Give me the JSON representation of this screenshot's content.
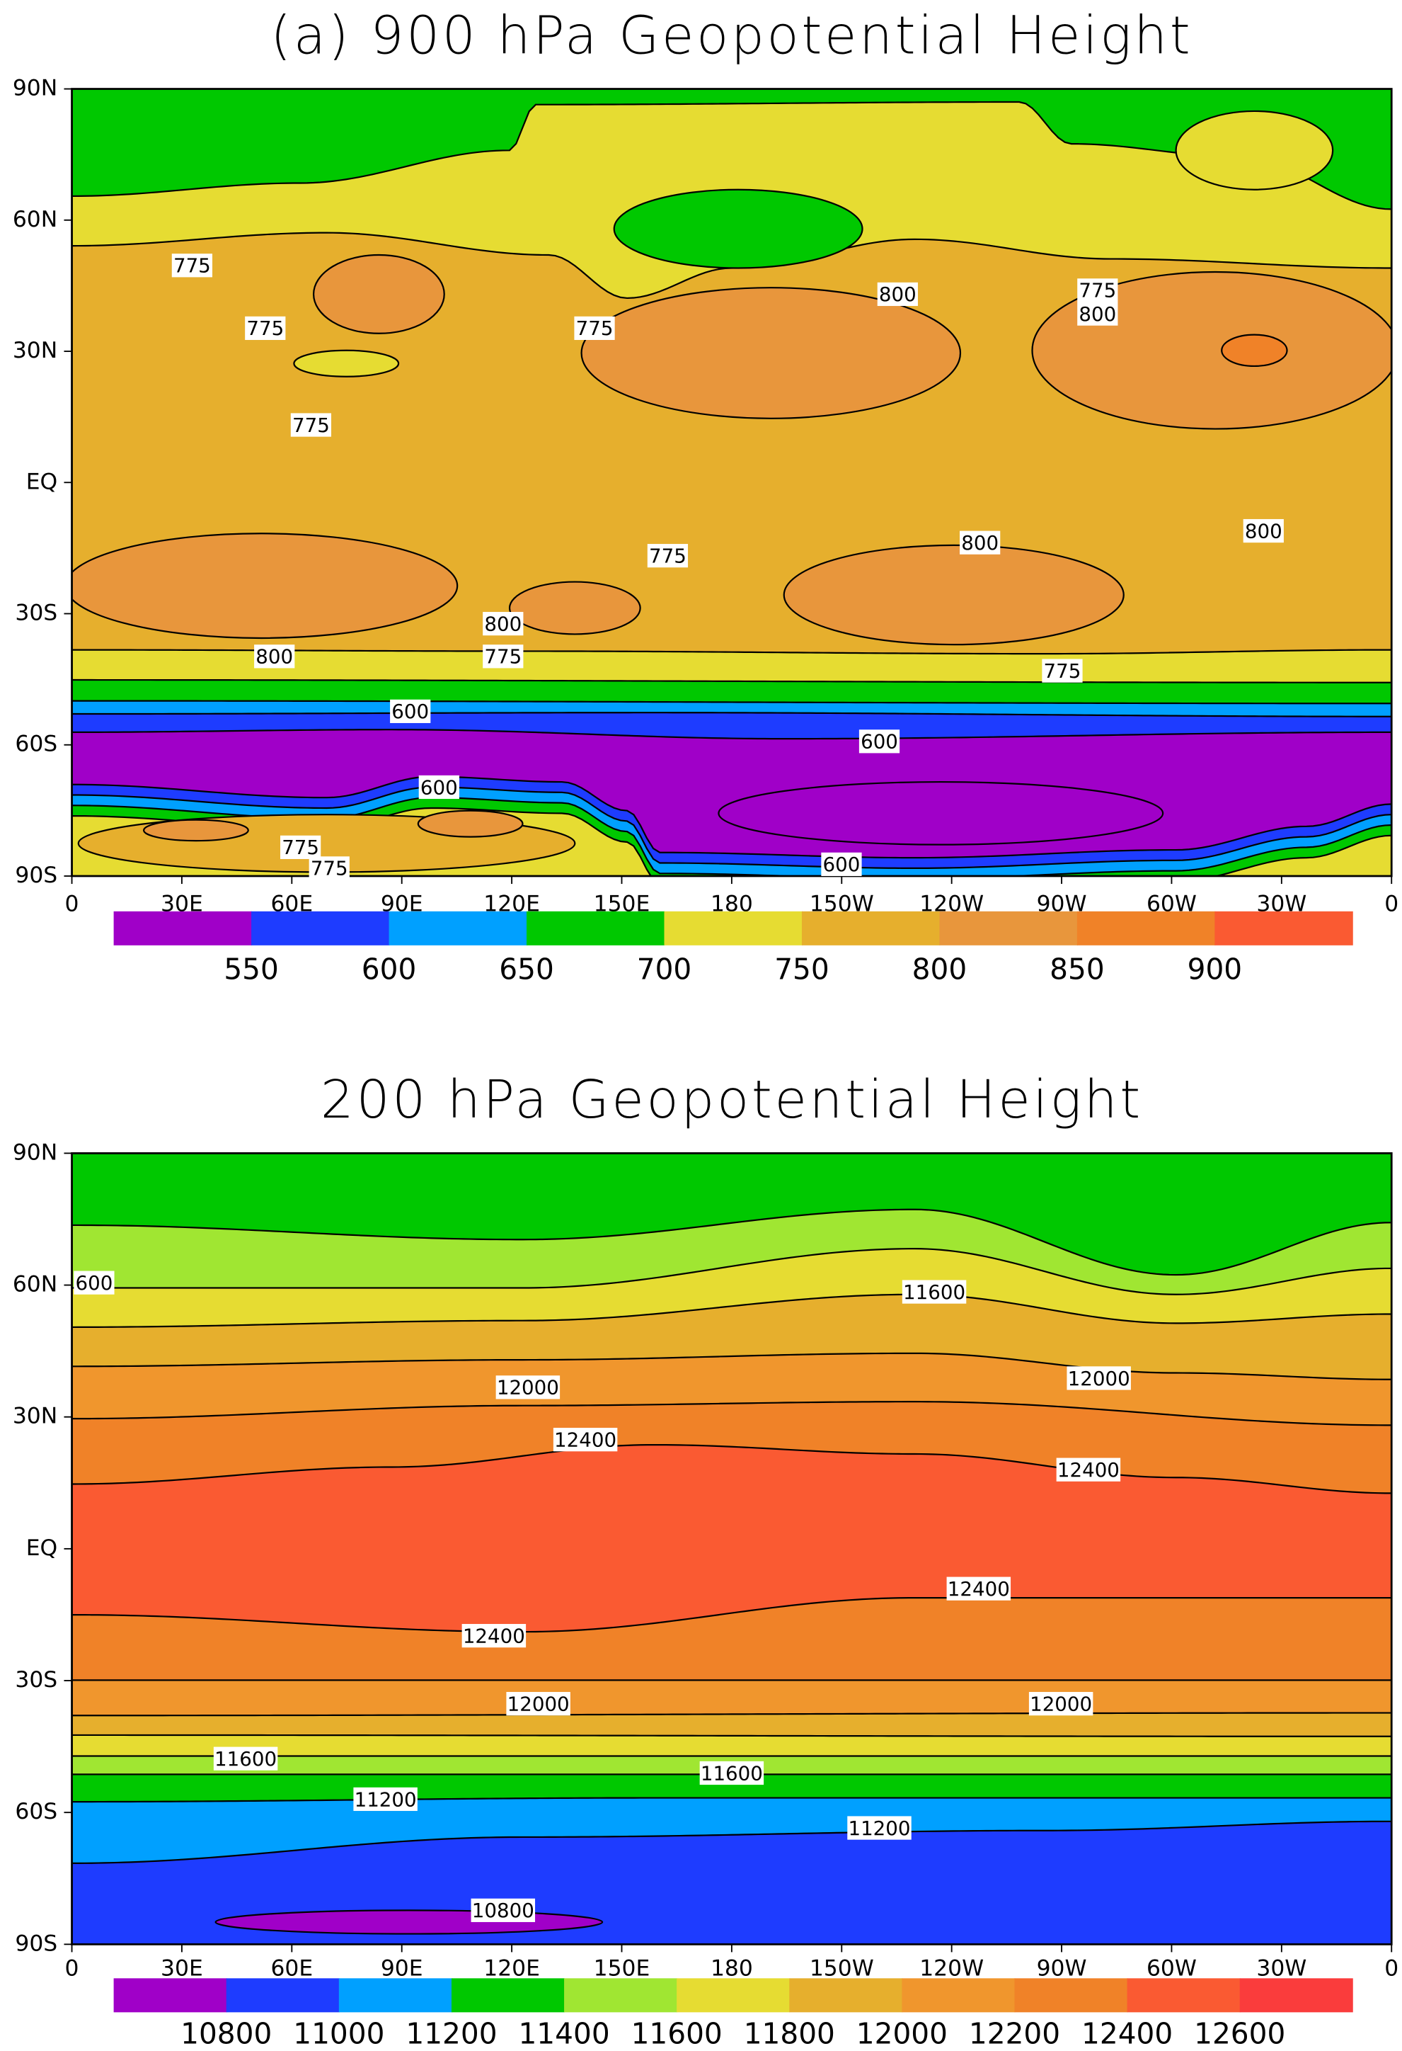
{
  "panels": [
    {
      "title": "(a) 900 hPa Geopotential Height",
      "lat_labels": [
        "90N",
        "60N",
        "30N",
        "EQ",
        "30S",
        "60S",
        "90S"
      ],
      "lon_labels": [
        "0",
        "30E",
        "60E",
        "90E",
        "120E",
        "150E",
        "180",
        "150W",
        "120W",
        "90W",
        "60W",
        "30W",
        "0"
      ],
      "levels": [
        550,
        600,
        650,
        700,
        750,
        800,
        850,
        900
      ],
      "colors": [
        "#a000c8",
        "#1e3cff",
        "#00a0ff",
        "#00c800",
        "#e6dc32",
        "#e6af2d",
        "#e8963c",
        "#f08228",
        "#fa5a32"
      ],
      "contour_labels": [
        775,
        775,
        775,
        775,
        800,
        775,
        800,
        800,
        800,
        775,
        800,
        800,
        775,
        775,
        600,
        600,
        600,
        775,
        775,
        600
      ]
    },
    {
      "title": "200 hPa Geopotential Height",
      "lat_labels": [
        "90N",
        "60N",
        "30N",
        "EQ",
        "30S",
        "60S",
        "90S"
      ],
      "lon_labels": [
        "0",
        "30E",
        "60E",
        "90E",
        "120E",
        "150E",
        "180",
        "150W",
        "120W",
        "90W",
        "60W",
        "30W",
        "0"
      ],
      "levels": [
        10800,
        11000,
        11200,
        11400,
        11600,
        11800,
        12000,
        12200,
        12400,
        12600
      ],
      "colors": [
        "#a000c8",
        "#1e3cff",
        "#00a0ff",
        "#00c800",
        "#a0e632",
        "#e6dc32",
        "#e6af2d",
        "#f0962d",
        "#f08228",
        "#fa5a32",
        "#fa3c3c"
      ],
      "contour_labels": [
        600,
        11600,
        12000,
        12000,
        12400,
        12400,
        12400,
        12400,
        12000,
        12000,
        11600,
        11600,
        11200,
        11200,
        10800
      ]
    }
  ]
}
